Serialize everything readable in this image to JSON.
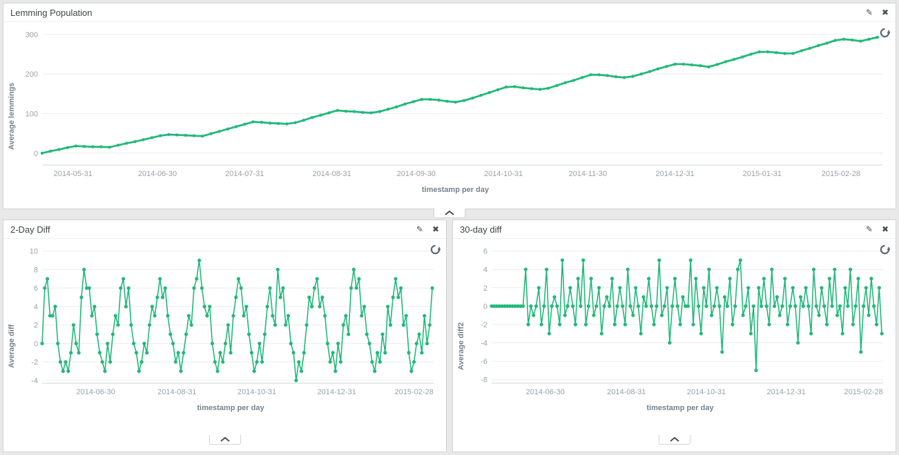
{
  "icons": {
    "edit": "✎",
    "close": "✖"
  },
  "theme": {
    "line_color": "#22b879",
    "grid_color": "#ececec",
    "axis_color": "#cfd4d8",
    "tick_color": "#98a1a9"
  },
  "chart_data": [
    {
      "type": "line",
      "title": "Lemming Population",
      "ylabel": "Average lemmings",
      "xlabel": "timestamp per day",
      "color": "#22b879",
      "line_width": 2.8,
      "dot_r": 2.2,
      "x_domain": [
        0,
        299
      ],
      "x_step": 3,
      "ylim": [
        -30,
        312
      ],
      "y_ticks": [
        0,
        100,
        200,
        300
      ],
      "x_ticks": [
        {
          "pos": 11,
          "label": "2014-05-31"
        },
        {
          "pos": 41,
          "label": "2014-06-30"
        },
        {
          "pos": 72,
          "label": "2014-07-31"
        },
        {
          "pos": 103,
          "label": "2014-08-31"
        },
        {
          "pos": 133,
          "label": "2014-09-30"
        },
        {
          "pos": 164,
          "label": "2014-10-31"
        },
        {
          "pos": 194,
          "label": "2014-11-30"
        },
        {
          "pos": 225,
          "label": "2014-12-31"
        },
        {
          "pos": 256,
          "label": "2015-01-31"
        },
        {
          "pos": 284,
          "label": "2015-02-28"
        }
      ],
      "values": [
        0,
        5,
        9,
        14,
        18,
        17,
        16,
        16,
        15,
        20,
        25,
        29,
        34,
        39,
        44,
        47,
        46,
        45,
        44,
        43,
        49,
        55,
        61,
        67,
        73,
        79,
        78,
        76,
        75,
        74,
        77,
        83,
        90,
        96,
        102,
        108,
        106,
        105,
        103,
        102,
        105,
        111,
        117,
        124,
        130,
        136,
        136,
        134,
        131,
        129,
        133,
        139,
        146,
        153,
        160,
        167,
        168,
        165,
        163,
        161,
        164,
        171,
        178,
        184,
        191,
        198,
        198,
        196,
        193,
        191,
        194,
        200,
        206,
        213,
        219,
        225,
        225,
        223,
        221,
        218,
        224,
        231,
        237,
        243,
        250,
        256,
        256,
        254,
        252,
        252,
        259,
        265,
        272,
        278,
        285,
        288,
        286,
        283,
        288,
        293
      ]
    },
    {
      "type": "line",
      "title": "2-Day Diff",
      "ylabel": "Average diff",
      "xlabel": "timestamp per day",
      "color": "#22b879",
      "line_width": 1.6,
      "dot_r": 2.6,
      "x_domain": [
        0,
        299
      ],
      "x_step": 2,
      "ylim": [
        -4.3,
        10.5
      ],
      "y_ticks": [
        -4,
        -2,
        0,
        2,
        4,
        6,
        8,
        10
      ],
      "x_ticks": [
        {
          "pos": 41,
          "label": "2014-06-30"
        },
        {
          "pos": 103,
          "label": "2014-08-31"
        },
        {
          "pos": 164,
          "label": "2014-10-31"
        },
        {
          "pos": 225,
          "label": "2014-12-31"
        },
        {
          "pos": 284,
          "label": "2015-02-28"
        }
      ],
      "values": [
        0,
        6,
        7,
        3,
        3,
        4,
        0,
        -2,
        -3,
        -2,
        -3,
        -1,
        2,
        0,
        -1,
        5,
        8,
        6,
        6,
        3,
        4,
        1,
        -1,
        -2,
        -3,
        0,
        -2,
        1,
        3,
        2,
        6,
        7,
        4,
        6,
        2,
        0,
        -1,
        -3,
        -2,
        0,
        -1,
        2,
        4,
        3,
        5,
        7,
        5,
        6,
        3,
        1,
        0,
        -2,
        -1,
        -3,
        -1,
        1,
        3,
        2,
        6,
        7,
        9,
        6,
        4,
        3,
        4,
        0,
        -2,
        -3,
        -1,
        -2,
        0,
        2,
        -1,
        3,
        5,
        7,
        6,
        3,
        4,
        1,
        -1,
        -3,
        -2,
        0,
        -2,
        1,
        4,
        6,
        3,
        2,
        8,
        5,
        6,
        2,
        3,
        0,
        -1,
        -4,
        -2,
        -3,
        -1,
        2,
        5,
        4,
        6,
        7,
        4,
        5,
        3,
        0,
        -2,
        -1,
        -3,
        0,
        -2,
        2,
        3,
        1,
        6,
        8,
        6,
        7,
        3,
        4,
        1,
        0,
        -2,
        -3,
        -1,
        -2,
        1,
        -1,
        4,
        2,
        5,
        7,
        5,
        6,
        2,
        3,
        -1,
        -3,
        -2,
        0,
        1,
        -1,
        3,
        0,
        2,
        6
      ]
    },
    {
      "type": "line",
      "title": "30-day diff",
      "ylabel": "Average diff2",
      "xlabel": "timestamp per day",
      "color": "#22b879",
      "line_width": 1.6,
      "dot_r": 2.6,
      "x_domain": [
        0,
        299
      ],
      "x_step": 2,
      "ylim": [
        -8.4,
        6.5
      ],
      "y_ticks": [
        -8,
        -6,
        -4,
        -2,
        0,
        2,
        4,
        6
      ],
      "x_ticks": [
        {
          "pos": 41,
          "label": "2014-06-30"
        },
        {
          "pos": 103,
          "label": "2014-08-31"
        },
        {
          "pos": 164,
          "label": "2014-10-31"
        },
        {
          "pos": 225,
          "label": "2014-12-31"
        },
        {
          "pos": 284,
          "label": "2015-02-28"
        }
      ],
      "values": [
        0,
        0,
        0,
        0,
        0,
        0,
        0,
        0,
        0,
        0,
        0,
        0,
        0,
        4,
        -2,
        0,
        -1,
        0,
        2,
        -2,
        0,
        4,
        -3,
        0,
        1,
        0,
        -2,
        5,
        -1,
        0,
        2,
        0,
        -2,
        3,
        0,
        5,
        -2,
        0,
        3,
        -1,
        0,
        2,
        -3,
        0,
        1,
        0,
        3,
        -2,
        0,
        2,
        0,
        -2,
        4,
        0,
        -1,
        2,
        0,
        -3,
        1,
        0,
        3,
        0,
        -2,
        0,
        5,
        -1,
        0,
        2,
        -4,
        0,
        3,
        0,
        -2,
        1,
        0,
        0,
        5,
        -2,
        3,
        0,
        -3,
        2,
        0,
        4,
        -1,
        0,
        2,
        0,
        -5,
        1,
        0,
        3,
        -2,
        0,
        4,
        5,
        -1,
        0,
        2,
        -3,
        0,
        -7,
        2,
        0,
        3,
        0,
        -2,
        4,
        0,
        1,
        -1,
        0,
        3,
        -2,
        0,
        2,
        0,
        -4,
        1,
        0,
        2,
        0,
        -3,
        4,
        0,
        -1,
        2,
        0,
        -2,
        3,
        0,
        4,
        -1,
        0,
        -3,
        2,
        0,
        4,
        -2,
        0,
        3,
        -5,
        0,
        2,
        -1,
        3,
        0,
        -2,
        2,
        -3
      ]
    }
  ]
}
